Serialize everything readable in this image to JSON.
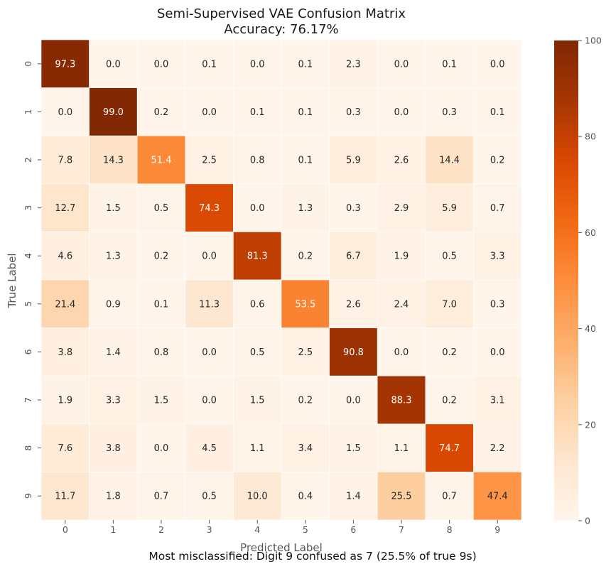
{
  "chart_data": {
    "type": "heatmap",
    "title": "Semi-Supervised VAE Confusion Matrix",
    "subtitle": "Accuracy: 76.17%",
    "xlabel": "Predicted Label",
    "ylabel": "True Label",
    "x_categories": [
      "0",
      "1",
      "2",
      "3",
      "4",
      "5",
      "6",
      "7",
      "8",
      "9"
    ],
    "y_categories": [
      "0",
      "1",
      "2",
      "3",
      "4",
      "5",
      "6",
      "7",
      "8",
      "9"
    ],
    "values": [
      [
        97.3,
        0.0,
        0.0,
        0.1,
        0.0,
        0.1,
        2.3,
        0.0,
        0.1,
        0.0
      ],
      [
        0.0,
        99.0,
        0.2,
        0.0,
        0.1,
        0.1,
        0.3,
        0.0,
        0.3,
        0.1
      ],
      [
        7.8,
        14.3,
        51.4,
        2.5,
        0.8,
        0.1,
        5.9,
        2.6,
        14.4,
        0.2
      ],
      [
        12.7,
        1.5,
        0.5,
        74.3,
        0.0,
        1.3,
        0.3,
        2.9,
        5.9,
        0.7
      ],
      [
        4.6,
        1.3,
        0.2,
        0.0,
        81.3,
        0.2,
        6.7,
        1.9,
        0.5,
        3.3
      ],
      [
        21.4,
        0.9,
        0.1,
        11.3,
        0.6,
        53.5,
        2.6,
        2.4,
        7.0,
        0.3
      ],
      [
        3.8,
        1.4,
        0.8,
        0.0,
        0.5,
        2.5,
        90.8,
        0.0,
        0.2,
        0.0
      ],
      [
        1.9,
        3.3,
        1.5,
        0.0,
        1.5,
        0.2,
        0.0,
        88.3,
        0.2,
        3.1
      ],
      [
        7.6,
        3.8,
        0.0,
        4.5,
        1.1,
        3.4,
        1.5,
        1.1,
        74.7,
        2.2
      ],
      [
        11.7,
        1.8,
        0.7,
        0.5,
        10.0,
        0.4,
        1.4,
        25.5,
        0.7,
        47.4
      ]
    ],
    "colorbar": {
      "range": [
        0,
        100
      ],
      "ticks": [
        "0",
        "20",
        "40",
        "60",
        "80",
        "100"
      ],
      "colormap": "Oranges"
    },
    "footer_note": "Most misclassified: Digit 9 confused as 7 (25.5% of true 9s)",
    "grid": false
  },
  "colors": {
    "dark_text": "#262626",
    "light_text": "#ffffff",
    "cell_border": "#ffffff"
  }
}
